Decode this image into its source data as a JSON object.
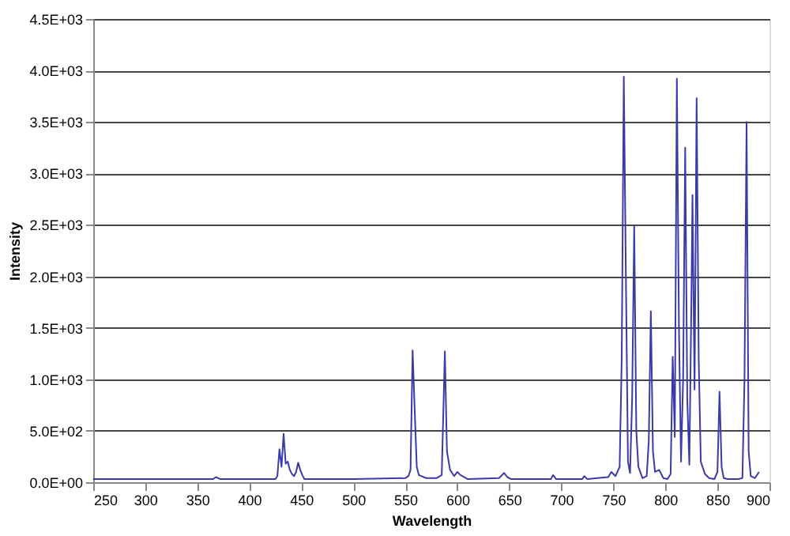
{
  "chart_data": {
    "type": "line",
    "xlabel": "Wavelength",
    "ylabel": "Intensity",
    "xlim": [
      250,
      900
    ],
    "xticks": [
      250,
      300,
      350,
      400,
      450,
      500,
      550,
      600,
      650,
      700,
      750,
      800,
      850,
      900
    ],
    "ylim": [
      0,
      4500
    ],
    "yticks": [
      {
        "value": 0,
        "label": "0.0E+00"
      },
      {
        "value": 500,
        "label": "5.0E+02"
      },
      {
        "value": 1000,
        "label": "1.0E+03"
      },
      {
        "value": 1500,
        "label": "1.5E+03"
      },
      {
        "value": 2000,
        "label": "2.0E+03"
      },
      {
        "value": 2500,
        "label": "2.5E+03"
      },
      {
        "value": 3000,
        "label": "3.0E+03"
      },
      {
        "value": 3500,
        "label": "3.5E+03"
      },
      {
        "value": 4000,
        "label": "4.0E+03"
      },
      {
        "value": 4500,
        "label": "4.5E+03"
      }
    ],
    "grid": "y",
    "marker": "none",
    "line_style": "solid",
    "series": [
      {
        "color": "#3a3aa8",
        "x": [
          250,
          300,
          365,
          368,
          372,
          400,
          425,
          427,
          429,
          431,
          433,
          435,
          437,
          439,
          441,
          443,
          445,
          447,
          449,
          451,
          453,
          460,
          500,
          550,
          553,
          555,
          557,
          559,
          561,
          563,
          570,
          580,
          585,
          588,
          590,
          593,
          597,
          600,
          603,
          610,
          640,
          645,
          648,
          652,
          660,
          690,
          692,
          695,
          720,
          722,
          725,
          745,
          748,
          752,
          756,
          758,
          760,
          762,
          764,
          766,
          768,
          770,
          772,
          774,
          778,
          782,
          784,
          786,
          788,
          790,
          794,
          798,
          802,
          805,
          807,
          809,
          811,
          813,
          815,
          817,
          819,
          821,
          823,
          825,
          826,
          828,
          830,
          832,
          834,
          838,
          842,
          847,
          850,
          852,
          854,
          856,
          860,
          870,
          874,
          876,
          878,
          880,
          882,
          886,
          890
        ],
        "values": [
          30,
          30,
          30,
          50,
          30,
          30,
          30,
          60,
          320,
          150,
          470,
          180,
          200,
          120,
          80,
          60,
          100,
          190,
          120,
          70,
          30,
          30,
          30,
          40,
          60,
          120,
          1280,
          700,
          150,
          70,
          40,
          40,
          70,
          1270,
          300,
          120,
          60,
          100,
          70,
          30,
          40,
          90,
          50,
          30,
          30,
          30,
          70,
          30,
          30,
          60,
          30,
          50,
          100,
          60,
          150,
          1200,
          3940,
          2000,
          200,
          90,
          800,
          2490,
          500,
          150,
          40,
          60,
          400,
          1660,
          300,
          100,
          120,
          40,
          30,
          80,
          1220,
          440,
          3920,
          1500,
          200,
          1000,
          3250,
          800,
          170,
          1800,
          2790,
          900,
          3730,
          1200,
          200,
          80,
          40,
          30,
          100,
          880,
          150,
          40,
          30,
          30,
          40,
          1000,
          3500,
          300,
          60,
          40,
          100
        ]
      }
    ]
  }
}
